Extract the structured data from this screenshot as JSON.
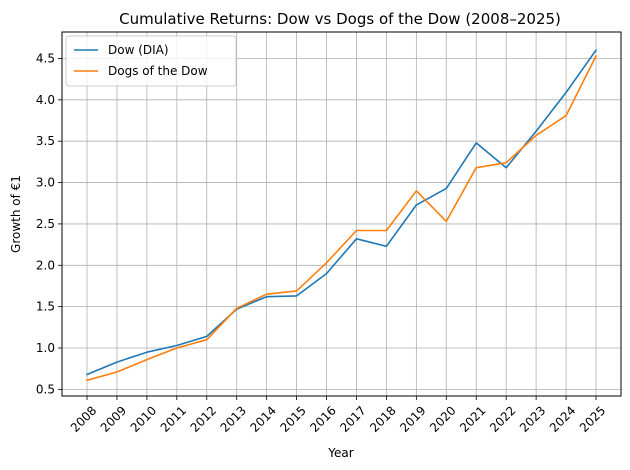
{
  "chart_data": {
    "type": "line",
    "title": "Cumulative Returns: Dow vs Dogs of the Dow (2008–2025)",
    "xlabel": "Year",
    "ylabel": "Growth of €1",
    "categories": [
      "2008",
      "2009",
      "2010",
      "2011",
      "2012",
      "2013",
      "2014",
      "2015",
      "2016",
      "2017",
      "2018",
      "2019",
      "2020",
      "2021",
      "2022",
      "2023",
      "2024",
      "2025"
    ],
    "series": [
      {
        "name": "Dow (DIA)",
        "color": "#1f77b4",
        "values": [
          0.68,
          0.83,
          0.95,
          1.03,
          1.14,
          1.47,
          1.62,
          1.63,
          1.9,
          2.32,
          2.23,
          2.73,
          2.93,
          3.48,
          3.18,
          3.62,
          4.09,
          4.6
        ]
      },
      {
        "name": "Dogs of the Dow",
        "color": "#ff7f0e",
        "values": [
          0.61,
          0.71,
          0.86,
          1.0,
          1.1,
          1.48,
          1.65,
          1.69,
          2.03,
          2.42,
          2.42,
          2.9,
          2.53,
          3.18,
          3.24,
          3.57,
          3.81,
          4.53
        ]
      }
    ],
    "ylim": [
      0.42,
      4.82
    ],
    "yticks": [
      "0.5",
      "1.0",
      "1.5",
      "2.0",
      "2.5",
      "3.0",
      "3.5",
      "4.0",
      "4.5"
    ],
    "grid": true,
    "legend": "top-left"
  }
}
